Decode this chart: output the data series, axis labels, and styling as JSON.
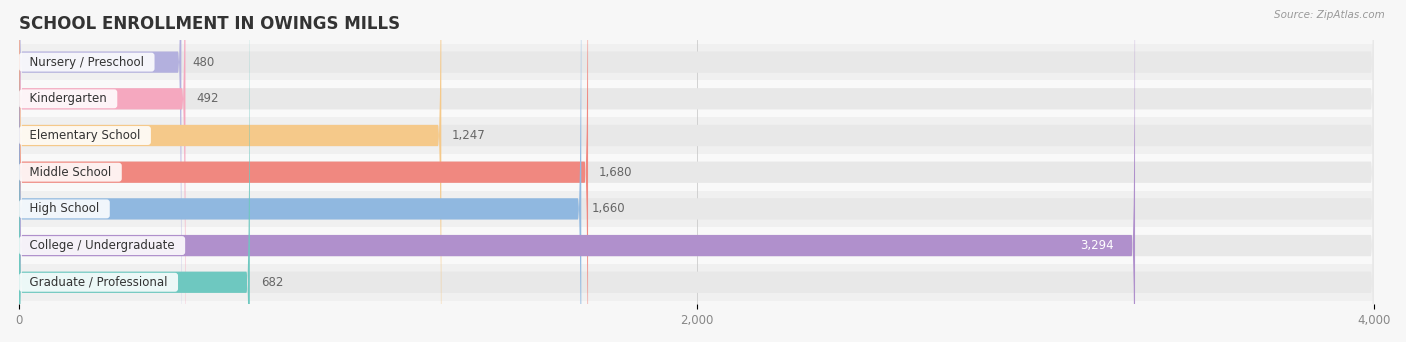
{
  "title": "SCHOOL ENROLLMENT IN OWINGS MILLS",
  "source": "Source: ZipAtlas.com",
  "categories": [
    "Nursery / Preschool",
    "Kindergarten",
    "Elementary School",
    "Middle School",
    "High School",
    "College / Undergraduate",
    "Graduate / Professional"
  ],
  "values": [
    480,
    492,
    1247,
    1680,
    1660,
    3294,
    682
  ],
  "bar_colors": [
    "#b3b0de",
    "#f5a8bf",
    "#f5c98a",
    "#f08880",
    "#90b8e0",
    "#b090cc",
    "#6ec8c0"
  ],
  "bar_bg_color": "#e8e8e8",
  "xlim": [
    0,
    4000
  ],
  "xticks": [
    0,
    2000,
    4000
  ],
  "title_fontsize": 12,
  "label_fontsize": 8.5,
  "value_fontsize": 8.5,
  "bg_color": "#f7f7f7",
  "row_bg_even": "#f0f0f0",
  "row_bg_odd": "#f9f9f9",
  "value_label_color_inside": "#ffffff",
  "value_label_color_outside": "#666666"
}
